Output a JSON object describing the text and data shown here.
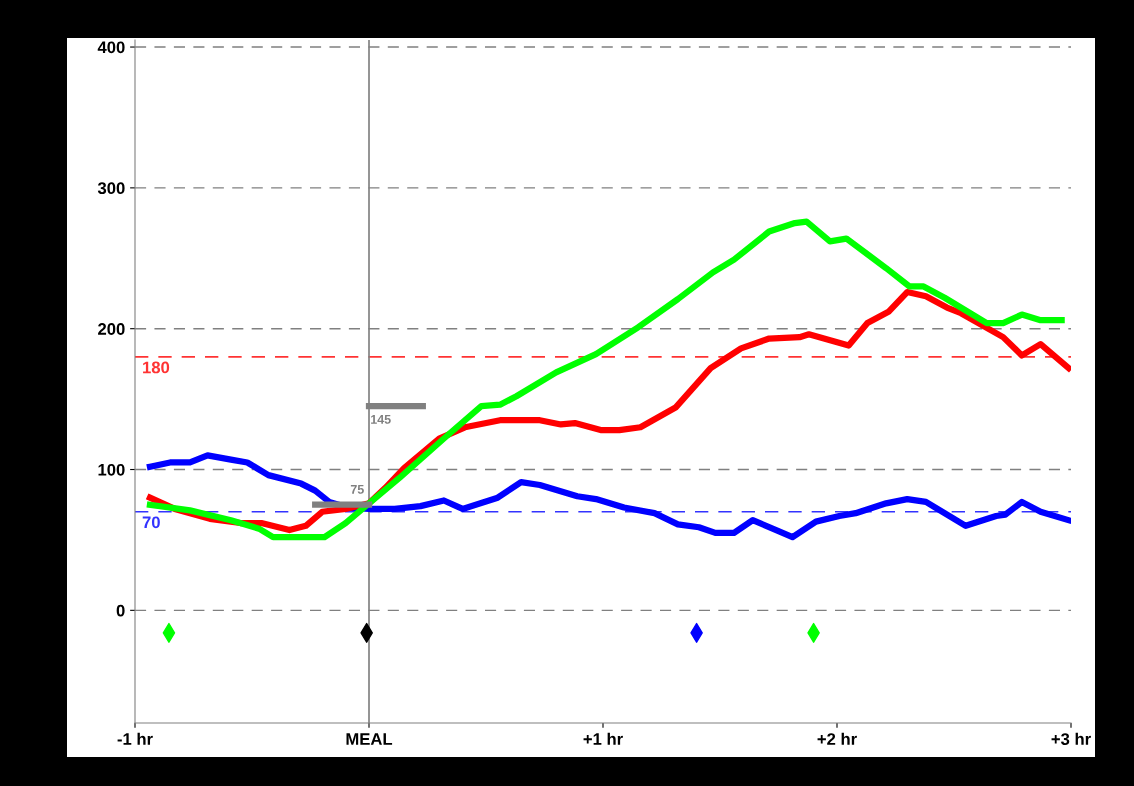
{
  "chart_data": {
    "type": "line",
    "xlim": [
      -1,
      3
    ],
    "xticks": [
      {
        "value": -1,
        "label": "-1 hr"
      },
      {
        "value": 0,
        "label": "MEAL"
      },
      {
        "value": 1,
        "label": "+1 hr"
      },
      {
        "value": 2,
        "label": "+2 hr"
      },
      {
        "value": 3,
        "label": "+3 hr"
      }
    ],
    "ylim": [
      -80,
      405
    ],
    "yticks": [
      0,
      100,
      200,
      300,
      400
    ],
    "grid": "y",
    "line_style": "solid",
    "marker": "none",
    "series": [
      {
        "color": "#0000ff",
        "x": [
          -0.936,
          -0.85,
          -0.765,
          -0.69,
          -0.59,
          -0.52,
          -0.43,
          -0.29,
          -0.23,
          -0.17,
          -0.09,
          0,
          0.11,
          0.22,
          0.32,
          0.4,
          0.55,
          0.65,
          0.73,
          0.89,
          0.97,
          1.09,
          1.22,
          1.32,
          1.41,
          1.48,
          1.56,
          1.64,
          1.74,
          1.81,
          1.91,
          2.01,
          2.08,
          2.21,
          2.3,
          2.38,
          2.55,
          2.68,
          2.72,
          2.79,
          2.87,
          2.99
        ],
        "values": [
          102,
          105,
          105,
          110,
          107,
          105,
          96,
          90,
          85,
          77,
          73,
          72,
          72,
          74,
          78,
          72,
          80,
          91,
          89,
          81,
          79,
          73,
          69,
          61,
          59,
          55,
          55,
          64,
          57,
          52,
          63,
          67,
          69,
          76,
          79,
          77,
          60,
          67,
          68,
          77,
          70,
          64
        ]
      },
      {
        "color": "#ff0000",
        "x": [
          -0.936,
          -0.83,
          -0.68,
          -0.55,
          -0.46,
          -0.34,
          -0.27,
          -0.2,
          -0.1,
          0,
          0.07,
          0.15,
          0.3,
          0.41,
          0.56,
          0.73,
          0.82,
          0.88,
          0.99,
          1.07,
          1.16,
          1.31,
          1.46,
          1.59,
          1.71,
          1.84,
          1.88,
          2.05,
          2.13,
          2.22,
          2.3,
          2.38,
          2.47,
          2.53,
          2.71,
          2.79,
          2.87,
          2.99
        ],
        "values": [
          80,
          72,
          65,
          62,
          62,
          57,
          60,
          70,
          72,
          76,
          87,
          101,
          122,
          130,
          135,
          135,
          132,
          133,
          128,
          128,
          130,
          144,
          172,
          186,
          193,
          194,
          196,
          188,
          204,
          212,
          226,
          223,
          215,
          211,
          194,
          181,
          189,
          172
        ]
      },
      {
        "color": "#00ff00",
        "x": [
          -0.936,
          -0.765,
          -0.59,
          -0.47,
          -0.41,
          -0.29,
          -0.19,
          -0.1,
          0,
          0.13,
          0.32,
          0.48,
          0.56,
          0.63,
          0.8,
          0.97,
          1.15,
          1.32,
          1.47,
          1.56,
          1.71,
          1.82,
          1.87,
          1.97,
          2.04,
          2.21,
          2.31,
          2.37,
          2.46,
          2.64,
          2.71,
          2.79,
          2.87,
          2.96
        ],
        "values": [
          75,
          71,
          64,
          58,
          52,
          52,
          52,
          62,
          76,
          94,
          122,
          145,
          146,
          152,
          169,
          182,
          201,
          221,
          240,
          249,
          269,
          275,
          276,
          262,
          264,
          243,
          230,
          230,
          222,
          204,
          204,
          210,
          206,
          206
        ]
      },
      {
        "color": "#808080",
        "x": [
          -0.23,
          0
        ],
        "values": [
          75,
          75
        ]
      },
      {
        "color": "#808080",
        "x": [
          0,
          0.23
        ],
        "values": [
          145,
          145
        ]
      },
      {
        "type": "scatter",
        "marker": "diamond",
        "color": "#00ff00",
        "x": [
          -0.855,
          1.9
        ],
        "values": [
          -16,
          -16
        ]
      },
      {
        "type": "scatter",
        "marker": "diamond",
        "color": "#0000ff",
        "x": [
          1.4
        ],
        "values": [
          -16
        ]
      },
      {
        "type": "scatter",
        "marker": "diamond",
        "color": "#000000",
        "x": [
          -0.01
        ],
        "values": [
          -16
        ]
      }
    ],
    "ref_lines": [
      {
        "axis": "y",
        "value": 180,
        "label": "180",
        "color": "#ff3333",
        "line_style": "dashed"
      },
      {
        "axis": "y",
        "value": 70,
        "label": "70",
        "color": "#3333ff",
        "line_style": "dashed"
      },
      {
        "axis": "x",
        "value": 0,
        "color": "#808080",
        "line_style": "solid"
      }
    ],
    "annotations": [
      {
        "text": "75",
        "x": -0.05,
        "y": 75
      },
      {
        "text": "145",
        "x": 0.05,
        "y": 145
      }
    ]
  }
}
